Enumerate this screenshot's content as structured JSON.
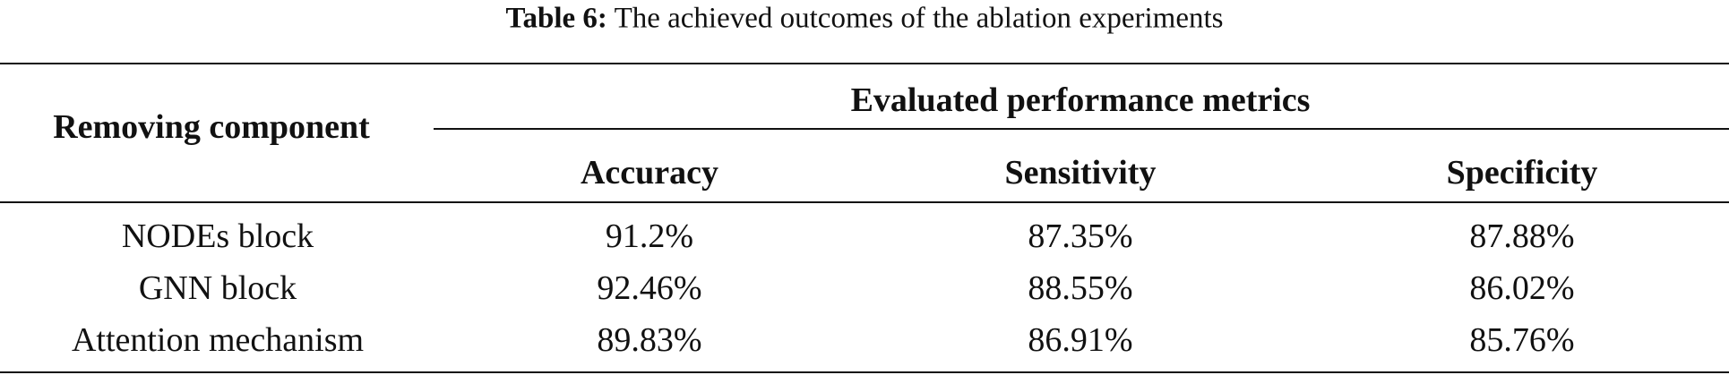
{
  "caption": {
    "label": "Table 6:",
    "text": "The achieved outcomes of the ablation experiments"
  },
  "table": {
    "header": {
      "row_label": "Removing component",
      "group": "Evaluated performance metrics",
      "columns": [
        "Accuracy",
        "Sensitivity",
        "Specificity"
      ]
    },
    "rows": [
      [
        "NODEs block",
        "91.2%",
        "87.35%",
        "87.88%"
      ],
      [
        "GNN block",
        "92.46%",
        "88.55%",
        "86.02%"
      ],
      [
        "Attention mechanism",
        "89.83%",
        "86.91%",
        "85.76%"
      ]
    ]
  }
}
